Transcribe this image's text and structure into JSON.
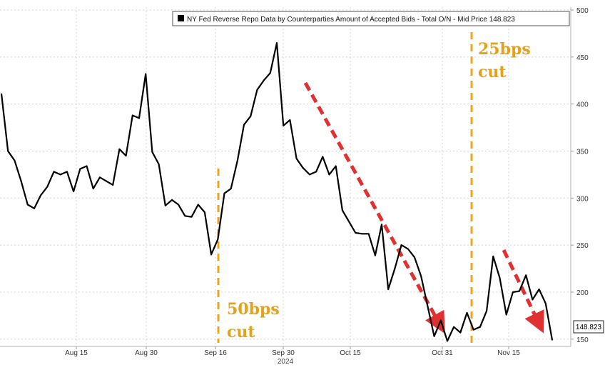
{
  "chart_data": {
    "type": "line",
    "title": "",
    "xlabel": "2024",
    "ylabel": "",
    "ylim": [
      143,
      500
    ],
    "yticks": [
      150,
      200,
      250,
      300,
      350,
      400,
      450,
      500
    ],
    "xticks": [
      "Aug 15",
      "Aug 30",
      "Sep 16",
      "Sep 30",
      "Oct 15",
      "Oct 31",
      "Nov 15"
    ],
    "year_label": "2024",
    "grid": true,
    "legend": {
      "placement": "top",
      "text": "NY Fed Reverse Repo Data by Counterparties Amount of Accepted Bids - Total O/N - Mid Price 148.823"
    },
    "last_value_label": "148.823",
    "series": [
      {
        "name": "NY Fed Reverse Repo Data by Counterparties Amount of Accepted Bids - Total O/N",
        "color": "#000000",
        "values": [
          411,
          350,
          340,
          318,
          293,
          289,
          303,
          312,
          328,
          325,
          328,
          307,
          331,
          334,
          310,
          322,
          318,
          314,
          352,
          345,
          388,
          385,
          432,
          349,
          336,
          292,
          298,
          293,
          281,
          280,
          293,
          285,
          240,
          256,
          305,
          310,
          340,
          378,
          387,
          415,
          425,
          433,
          465,
          377,
          383,
          342,
          332,
          325,
          328,
          344,
          325,
          334,
          287,
          275,
          263,
          262,
          262,
          239,
          272,
          203,
          225,
          250,
          246,
          237,
          217,
          185,
          153,
          170,
          148,
          163,
          157,
          178,
          160,
          163,
          180,
          238,
          215,
          176,
          200,
          201,
          218,
          192,
          203,
          188,
          149
        ]
      }
    ],
    "annotations": [
      {
        "kind": "vline",
        "color": "#f2a31c",
        "text_lines": [
          "50bps",
          "cut"
        ]
      },
      {
        "kind": "vline",
        "color": "#f2a31c",
        "text_lines": [
          "25bps",
          "cut"
        ]
      },
      {
        "kind": "arrow",
        "color": "#e03030"
      },
      {
        "kind": "arrow",
        "color": "#e03030"
      }
    ]
  }
}
